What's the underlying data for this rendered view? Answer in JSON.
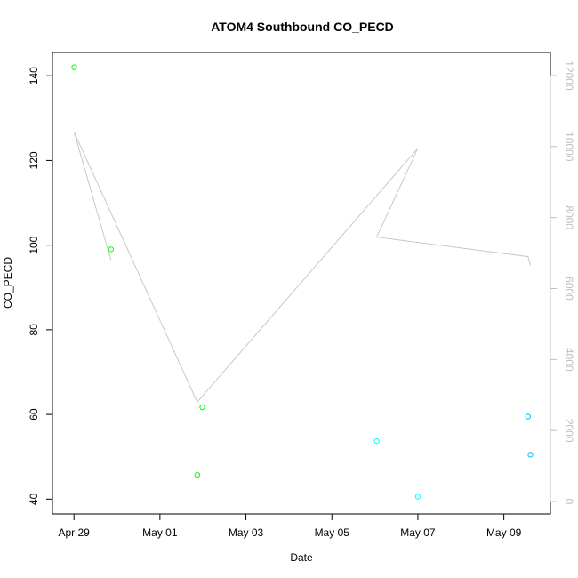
{
  "chart_data": {
    "type": "scatter",
    "title": "ATOM4 Southbound CO_PECD",
    "xlabel": "Date",
    "ylabel": "CO_PECD",
    "x_ticks": [
      "Apr 29",
      "May 01",
      "May 03",
      "May 05",
      "May 07",
      "May 09"
    ],
    "y_ticks": [
      "40",
      "60",
      "80",
      "100",
      "120",
      "140"
    ],
    "y_ticks_values": [
      40,
      60,
      80,
      100,
      120,
      140
    ],
    "y2_ticks": [
      "0",
      "2000",
      "4000",
      "6000",
      "8000",
      "10000",
      "12000"
    ],
    "y2_ticks_values": [
      0,
      2000,
      4000,
      6000,
      8000,
      10000,
      12000
    ],
    "ylim": [
      36.5,
      145.5
    ],
    "y2lim": [
      -350,
      12650
    ],
    "xlim": [
      "2016-04-28 12:00",
      "2016-05-10 02:00"
    ],
    "series": [
      {
        "color": "#00ff00",
        "marker": "open-circle",
        "points": [
          {
            "x": "2016-04-29 00:10",
            "y": 142.0
          },
          {
            "x": "2016-04-29 20:40",
            "y": 99.0
          },
          {
            "x": "2016-05-01 20:50",
            "y": 45.7
          },
          {
            "x": "2016-05-01 23:40",
            "y": 61.7
          }
        ]
      },
      {
        "color": "#00ffff",
        "marker": "open-circle",
        "points": [
          {
            "x": "2016-05-06 01:00",
            "y": 53.7
          },
          {
            "x": "2016-05-07 00:00",
            "y": 40.6
          }
        ]
      },
      {
        "color": "#00bfff",
        "marker": "open-circle",
        "points": [
          {
            "x": "2016-05-09 13:30",
            "y": 59.5
          },
          {
            "x": "2016-05-09 14:50",
            "y": 50.5
          }
        ]
      }
    ],
    "right_axis_line": {
      "color": "#c8c8c8",
      "points": [
        {
          "x": "2016-04-29 00:10",
          "y": 10400
        },
        {
          "x": "2016-04-29 20:40",
          "y": 6800
        },
        {
          "x": "2016-04-29 00:10",
          "y": 10400
        },
        {
          "x": "2016-05-01 20:50",
          "y": 2800
        },
        {
          "x": "2016-05-07 00:00",
          "y": 9950
        },
        {
          "x": "2016-05-06 01:00",
          "y": 7450
        },
        {
          "x": "2016-05-09 13:30",
          "y": 6900
        },
        {
          "x": "2016-05-09 14:50",
          "y": 6650
        }
      ]
    }
  }
}
